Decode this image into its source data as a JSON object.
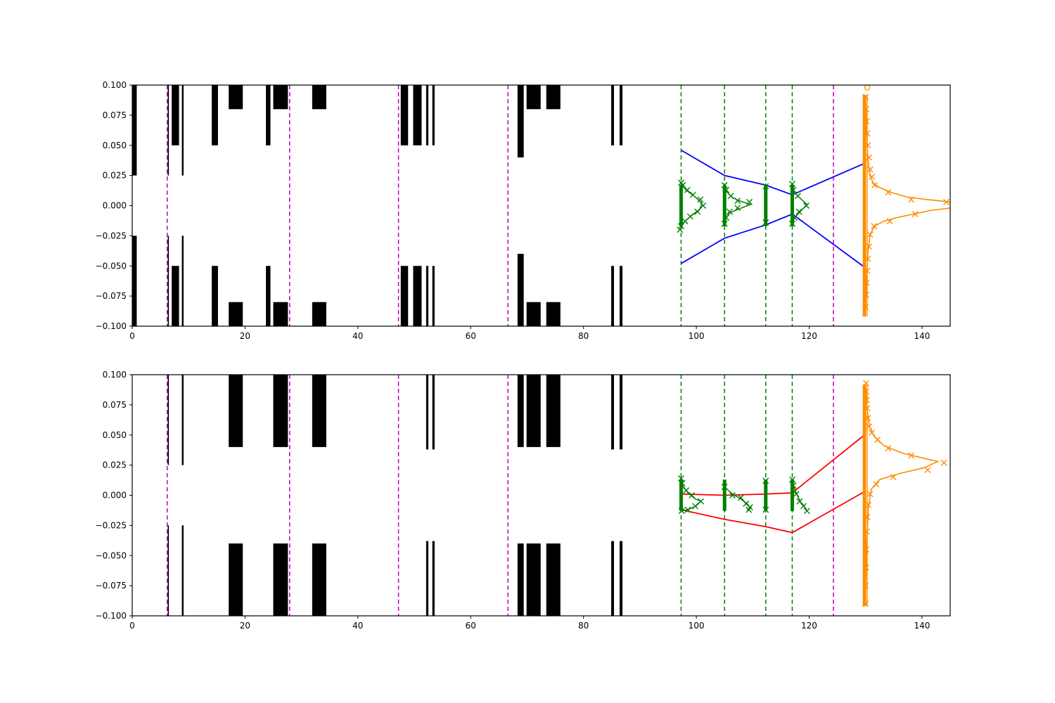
{
  "chart_data": [
    {
      "type": "line",
      "xlim": [
        0,
        145
      ],
      "ylim": [
        -0.1,
        0.1
      ],
      "x_ticks": [
        "0",
        "20",
        "40",
        "60",
        "80",
        "100",
        "120",
        "140"
      ],
      "y_ticks": [
        "0.100",
        "0.075",
        "0.050",
        "0.025",
        "0.000",
        "−0.025",
        "−0.050",
        "−0.075",
        "−0.100"
      ],
      "grid": false,
      "colors": {
        "aperture": "#000000",
        "marker_line": "#bf00bf",
        "monitor_line": "#008000",
        "envelope": "#0000ff",
        "orange": "#ff8c00"
      },
      "apertures": [
        {
          "x0": 0,
          "x1": 0.8,
          "gap": 0.025
        },
        {
          "x0": 6.3,
          "x1": 6.5,
          "gap": 0.025
        },
        {
          "x0": 7.0,
          "x1": 8.3,
          "gap": 0.05
        },
        {
          "x0": 8.8,
          "x1": 9.1,
          "gap": 0.025
        },
        {
          "x0": 14.1,
          "x1": 15.2,
          "gap": 0.05
        },
        {
          "x0": 17.1,
          "x1": 19.6,
          "gap": 0.08
        },
        {
          "x0": 23.7,
          "x1": 24.5,
          "gap": 0.05
        },
        {
          "x0": 25.0,
          "x1": 27.6,
          "gap": 0.08
        },
        {
          "x0": 31.9,
          "x1": 34.4,
          "gap": 0.08
        },
        {
          "x0": 47.6,
          "x1": 48.9,
          "gap": 0.05
        },
        {
          "x0": 49.8,
          "x1": 51.3,
          "gap": 0.05
        },
        {
          "x0": 52.1,
          "x1": 52.5,
          "gap": 0.05
        },
        {
          "x0": 53.2,
          "x1": 53.6,
          "gap": 0.05
        },
        {
          "x0": 68.3,
          "x1": 69.4,
          "gap": 0.04
        },
        {
          "x0": 69.9,
          "x1": 72.4,
          "gap": 0.08
        },
        {
          "x0": 73.4,
          "x1": 75.9,
          "gap": 0.08
        },
        {
          "x0": 84.9,
          "x1": 85.4,
          "gap": 0.05
        },
        {
          "x0": 86.4,
          "x1": 86.9,
          "gap": 0.05
        }
      ],
      "marker_lines_x": [
        6.2,
        27.9,
        47.2,
        66.6,
        124.3
      ],
      "monitor_lines_x": [
        97.3,
        105.0,
        112.3,
        117.0
      ],
      "envelope": {
        "x": [
          97.3,
          105.0,
          112.3,
          117.0,
          129.8
        ],
        "upper": [
          0.046,
          0.025,
          0.017,
          0.009,
          0.035
        ],
        "lower": [
          -0.048,
          -0.027,
          -0.016,
          -0.007,
          -0.051
        ]
      },
      "monitor_bars": [
        {
          "x": 97.3,
          "ymin": -0.017,
          "ymax": 0.017
        },
        {
          "x": 105.0,
          "ymin": -0.017,
          "ymax": 0.017
        },
        {
          "x": 112.3,
          "ymin": -0.017,
          "ymax": 0.017
        },
        {
          "x": 117.0,
          "ymin": -0.017,
          "ymax": 0.017
        }
      ],
      "profile_points": [
        {
          "x": 97.3,
          "y": 0.019
        },
        {
          "x": 97.6,
          "y": 0.017
        },
        {
          "x": 98.4,
          "y": 0.013
        },
        {
          "x": 99.4,
          "y": 0.009
        },
        {
          "x": 100.7,
          "y": 0.005
        },
        {
          "x": 101.2,
          "y": 0.0
        },
        {
          "x": 100.2,
          "y": -0.005
        },
        {
          "x": 98.9,
          "y": -0.009
        },
        {
          "x": 98.0,
          "y": -0.013
        },
        {
          "x": 97.3,
          "y": -0.017
        },
        {
          "x": 97.1,
          "y": -0.02
        },
        {
          "x": 105.0,
          "y": 0.017
        },
        {
          "x": 105.3,
          "y": 0.013
        },
        {
          "x": 106.1,
          "y": 0.008
        },
        {
          "x": 107.3,
          "y": 0.004
        },
        {
          "x": 109.4,
          "y": 0.003
        },
        {
          "x": 107.3,
          "y": -0.002
        },
        {
          "x": 105.9,
          "y": -0.005
        },
        {
          "x": 105.3,
          "y": -0.01
        },
        {
          "x": 105.0,
          "y": -0.015
        },
        {
          "x": 112.3,
          "y": 0.016
        },
        {
          "x": 112.3,
          "y": -0.014
        },
        {
          "x": 117.0,
          "y": 0.018
        },
        {
          "x": 117.2,
          "y": 0.013
        },
        {
          "x": 118.0,
          "y": 0.008
        },
        {
          "x": 119.5,
          "y": 0.0
        },
        {
          "x": 118.2,
          "y": -0.005
        },
        {
          "x": 117.4,
          "y": -0.01
        },
        {
          "x": 117.0,
          "y": -0.015
        }
      ],
      "profile_curves": [
        [
          [
            97.3,
            0.019
          ],
          [
            97.6,
            0.016
          ],
          [
            98.4,
            0.012
          ],
          [
            99.6,
            0.008
          ],
          [
            101.0,
            0.002
          ],
          [
            100.6,
            -0.003
          ],
          [
            99.2,
            -0.008
          ],
          [
            98.0,
            -0.013
          ],
          [
            97.3,
            -0.017
          ]
        ],
        [
          [
            105.0,
            0.017
          ],
          [
            105.3,
            0.012
          ],
          [
            106.3,
            0.007
          ],
          [
            107.6,
            0.004
          ],
          [
            109.6,
            0.001
          ],
          [
            107.4,
            -0.003
          ],
          [
            105.9,
            -0.006
          ],
          [
            105.3,
            -0.01
          ],
          [
            105.0,
            -0.015
          ]
        ],
        [
          [
            117.0,
            0.018
          ],
          [
            117.2,
            0.012
          ],
          [
            118.2,
            0.007
          ],
          [
            119.6,
            0.001
          ],
          [
            118.4,
            -0.005
          ],
          [
            117.4,
            -0.01
          ],
          [
            117.0,
            -0.015
          ]
        ]
      ],
      "orange_bar": {
        "x": 129.8,
        "ymin": -0.092,
        "ymax": 0.092
      },
      "orange_points": [
        {
          "x": 130.0,
          "y": 0.09
        },
        {
          "x": 130.1,
          "y": 0.08
        },
        {
          "x": 130.2,
          "y": 0.07
        },
        {
          "x": 130.3,
          "y": 0.06
        },
        {
          "x": 130.4,
          "y": 0.05
        },
        {
          "x": 130.6,
          "y": 0.04
        },
        {
          "x": 130.8,
          "y": 0.03
        },
        {
          "x": 131.1,
          "y": 0.024
        },
        {
          "x": 131.6,
          "y": 0.017
        },
        {
          "x": 134.0,
          "y": 0.011
        },
        {
          "x": 138.1,
          "y": 0.005
        },
        {
          "x": 144.3,
          "y": 0.003
        },
        {
          "x": 138.8,
          "y": -0.007
        },
        {
          "x": 134.3,
          "y": -0.013
        },
        {
          "x": 131.5,
          "y": -0.017
        },
        {
          "x": 130.8,
          "y": -0.024
        },
        {
          "x": 130.6,
          "y": -0.034
        },
        {
          "x": 130.4,
          "y": -0.044
        },
        {
          "x": 130.3,
          "y": -0.054
        },
        {
          "x": 130.2,
          "y": -0.064
        },
        {
          "x": 130.1,
          "y": -0.074
        },
        {
          "x": 130.0,
          "y": -0.084
        }
      ],
      "orange_circle": {
        "x": 130.3,
        "y": 0.098
      },
      "orange_curve": [
        [
          130.0,
          0.092
        ],
        [
          130.2,
          0.06
        ],
        [
          130.4,
          0.04
        ],
        [
          130.8,
          0.025
        ],
        [
          131.3,
          0.019
        ],
        [
          132.5,
          0.015
        ],
        [
          134.5,
          0.011
        ],
        [
          137.5,
          0.007
        ],
        [
          141.0,
          0.005
        ],
        [
          145.0,
          0.003
        ]
      ],
      "orange_curve_lower": [
        [
          145.0,
          -0.002
        ],
        [
          141.5,
          -0.004
        ],
        [
          138.5,
          -0.007
        ],
        [
          135.5,
          -0.01
        ],
        [
          133.2,
          -0.013
        ],
        [
          131.6,
          -0.017
        ],
        [
          130.8,
          -0.024
        ],
        [
          130.4,
          -0.04
        ],
        [
          130.2,
          -0.06
        ],
        [
          130.0,
          -0.09
        ]
      ]
    },
    {
      "type": "line",
      "xlim": [
        0,
        145
      ],
      "ylim": [
        -0.1,
        0.1
      ],
      "x_ticks": [
        "0",
        "20",
        "40",
        "60",
        "80",
        "100",
        "120",
        "140"
      ],
      "y_ticks": [
        "0.100",
        "0.075",
        "0.050",
        "0.025",
        "0.000",
        "−0.025",
        "−0.050",
        "−0.075",
        "−0.100"
      ],
      "grid": false,
      "colors": {
        "aperture": "#000000",
        "marker_line": "#bf00bf",
        "monitor_line": "#008000",
        "envelope": "#ff0000",
        "orange": "#ff8c00"
      },
      "apertures": [
        {
          "x0": 6.3,
          "x1": 6.5,
          "gap": 0.025
        },
        {
          "x0": 8.8,
          "x1": 9.1,
          "gap": 0.025
        },
        {
          "x0": 17.1,
          "x1": 19.6,
          "gap": 0.04
        },
        {
          "x0": 25.0,
          "x1": 27.6,
          "gap": 0.04
        },
        {
          "x0": 31.9,
          "x1": 34.4,
          "gap": 0.04
        },
        {
          "x0": 52.1,
          "x1": 52.5,
          "gap": 0.038
        },
        {
          "x0": 53.2,
          "x1": 53.6,
          "gap": 0.038
        },
        {
          "x0": 68.3,
          "x1": 69.4,
          "gap": 0.04
        },
        {
          "x0": 69.9,
          "x1": 72.4,
          "gap": 0.04
        },
        {
          "x0": 73.4,
          "x1": 75.9,
          "gap": 0.04
        },
        {
          "x0": 84.9,
          "x1": 85.4,
          "gap": 0.038
        },
        {
          "x0": 86.4,
          "x1": 86.9,
          "gap": 0.038
        }
      ],
      "marker_lines_x": [
        6.2,
        27.9,
        47.2,
        66.6,
        124.3
      ],
      "monitor_lines_x": [
        97.3,
        105.0,
        112.3,
        117.0
      ],
      "envelope": {
        "x": [
          97.3,
          105.0,
          112.3,
          117.0,
          129.8
        ],
        "upper": [
          0.001,
          0.0,
          0.001,
          0.002,
          0.05
        ],
        "lower": [
          -0.012,
          -0.02,
          -0.026,
          -0.031,
          0.003
        ]
      },
      "monitor_bars": [
        {
          "x": 97.3,
          "ymin": -0.013,
          "ymax": 0.013
        },
        {
          "x": 105.0,
          "ymin": -0.013,
          "ymax": 0.013
        },
        {
          "x": 112.3,
          "ymin": -0.013,
          "ymax": 0.013
        },
        {
          "x": 117.0,
          "ymin": -0.013,
          "ymax": 0.013
        }
      ],
      "profile_points": [
        {
          "x": 97.3,
          "y": 0.014
        },
        {
          "x": 97.5,
          "y": 0.01
        },
        {
          "x": 98.2,
          "y": 0.004
        },
        {
          "x": 99.2,
          "y": 0.0
        },
        {
          "x": 100.8,
          "y": -0.005
        },
        {
          "x": 99.8,
          "y": -0.009
        },
        {
          "x": 98.5,
          "y": -0.012
        },
        {
          "x": 97.4,
          "y": -0.013
        },
        {
          "x": 105.0,
          "y": 0.007
        },
        {
          "x": 106.4,
          "y": 0.0
        },
        {
          "x": 107.9,
          "y": -0.002
        },
        {
          "x": 108.8,
          "y": -0.007
        },
        {
          "x": 109.5,
          "y": -0.01
        },
        {
          "x": 109.3,
          "y": -0.012
        },
        {
          "x": 112.3,
          "y": 0.012
        },
        {
          "x": 112.3,
          "y": -0.012
        },
        {
          "x": 117.0,
          "y": 0.013
        },
        {
          "x": 117.2,
          "y": 0.008
        },
        {
          "x": 117.7,
          "y": 0.001
        },
        {
          "x": 118.3,
          "y": -0.005
        },
        {
          "x": 119.0,
          "y": -0.009
        },
        {
          "x": 119.6,
          "y": -0.013
        }
      ],
      "profile_curves": [
        [
          [
            97.3,
            0.014
          ],
          [
            97.6,
            0.008
          ],
          [
            98.5,
            0.002
          ],
          [
            99.8,
            -0.003
          ],
          [
            100.8,
            -0.005
          ],
          [
            99.9,
            -0.009
          ],
          [
            98.5,
            -0.012
          ],
          [
            97.3,
            -0.013
          ]
        ],
        [
          [
            105.0,
            0.007
          ],
          [
            106.4,
            0.001
          ],
          [
            107.9,
            -0.003
          ],
          [
            109.0,
            -0.007
          ],
          [
            109.5,
            -0.01
          ],
          [
            109.3,
            -0.013
          ]
        ],
        [
          [
            117.0,
            0.013
          ],
          [
            117.2,
            0.008
          ],
          [
            117.8,
            0.001
          ],
          [
            118.4,
            -0.005
          ],
          [
            119.1,
            -0.009
          ],
          [
            119.6,
            -0.013
          ]
        ]
      ],
      "orange_bar": {
        "x": 129.8,
        "ymin": -0.092,
        "ymax": 0.092
      },
      "orange_points": [
        {
          "x": 130.1,
          "y": 0.093
        },
        {
          "x": 130.1,
          "y": 0.086
        },
        {
          "x": 130.2,
          "y": 0.079
        },
        {
          "x": 130.3,
          "y": 0.072
        },
        {
          "x": 130.4,
          "y": 0.064
        },
        {
          "x": 130.6,
          "y": 0.057
        },
        {
          "x": 131.1,
          "y": 0.052
        },
        {
          "x": 132.1,
          "y": 0.046
        },
        {
          "x": 134.0,
          "y": 0.039
        },
        {
          "x": 138.1,
          "y": 0.033
        },
        {
          "x": 143.9,
          "y": 0.027
        },
        {
          "x": 141.0,
          "y": 0.021
        },
        {
          "x": 134.9,
          "y": 0.015
        },
        {
          "x": 131.9,
          "y": 0.009
        },
        {
          "x": 130.8,
          "y": 0.001
        },
        {
          "x": 130.5,
          "y": -0.008
        },
        {
          "x": 130.3,
          "y": -0.018
        },
        {
          "x": 130.2,
          "y": -0.03
        },
        {
          "x": 130.1,
          "y": -0.045
        },
        {
          "x": 130.1,
          "y": -0.06
        },
        {
          "x": 130.0,
          "y": -0.075
        },
        {
          "x": 130.0,
          "y": -0.09
        }
      ],
      "orange_curve": [
        [
          130.0,
          0.092
        ],
        [
          130.3,
          0.07
        ],
        [
          130.7,
          0.057
        ],
        [
          131.5,
          0.049
        ],
        [
          133.3,
          0.041
        ],
        [
          136.5,
          0.035
        ],
        [
          140.0,
          0.031
        ],
        [
          142.8,
          0.028
        ],
        [
          140.5,
          0.023
        ],
        [
          136.0,
          0.018
        ],
        [
          132.5,
          0.013
        ],
        [
          131.0,
          0.005
        ],
        [
          130.5,
          -0.01
        ],
        [
          130.2,
          -0.04
        ],
        [
          130.0,
          -0.09
        ]
      ]
    }
  ]
}
